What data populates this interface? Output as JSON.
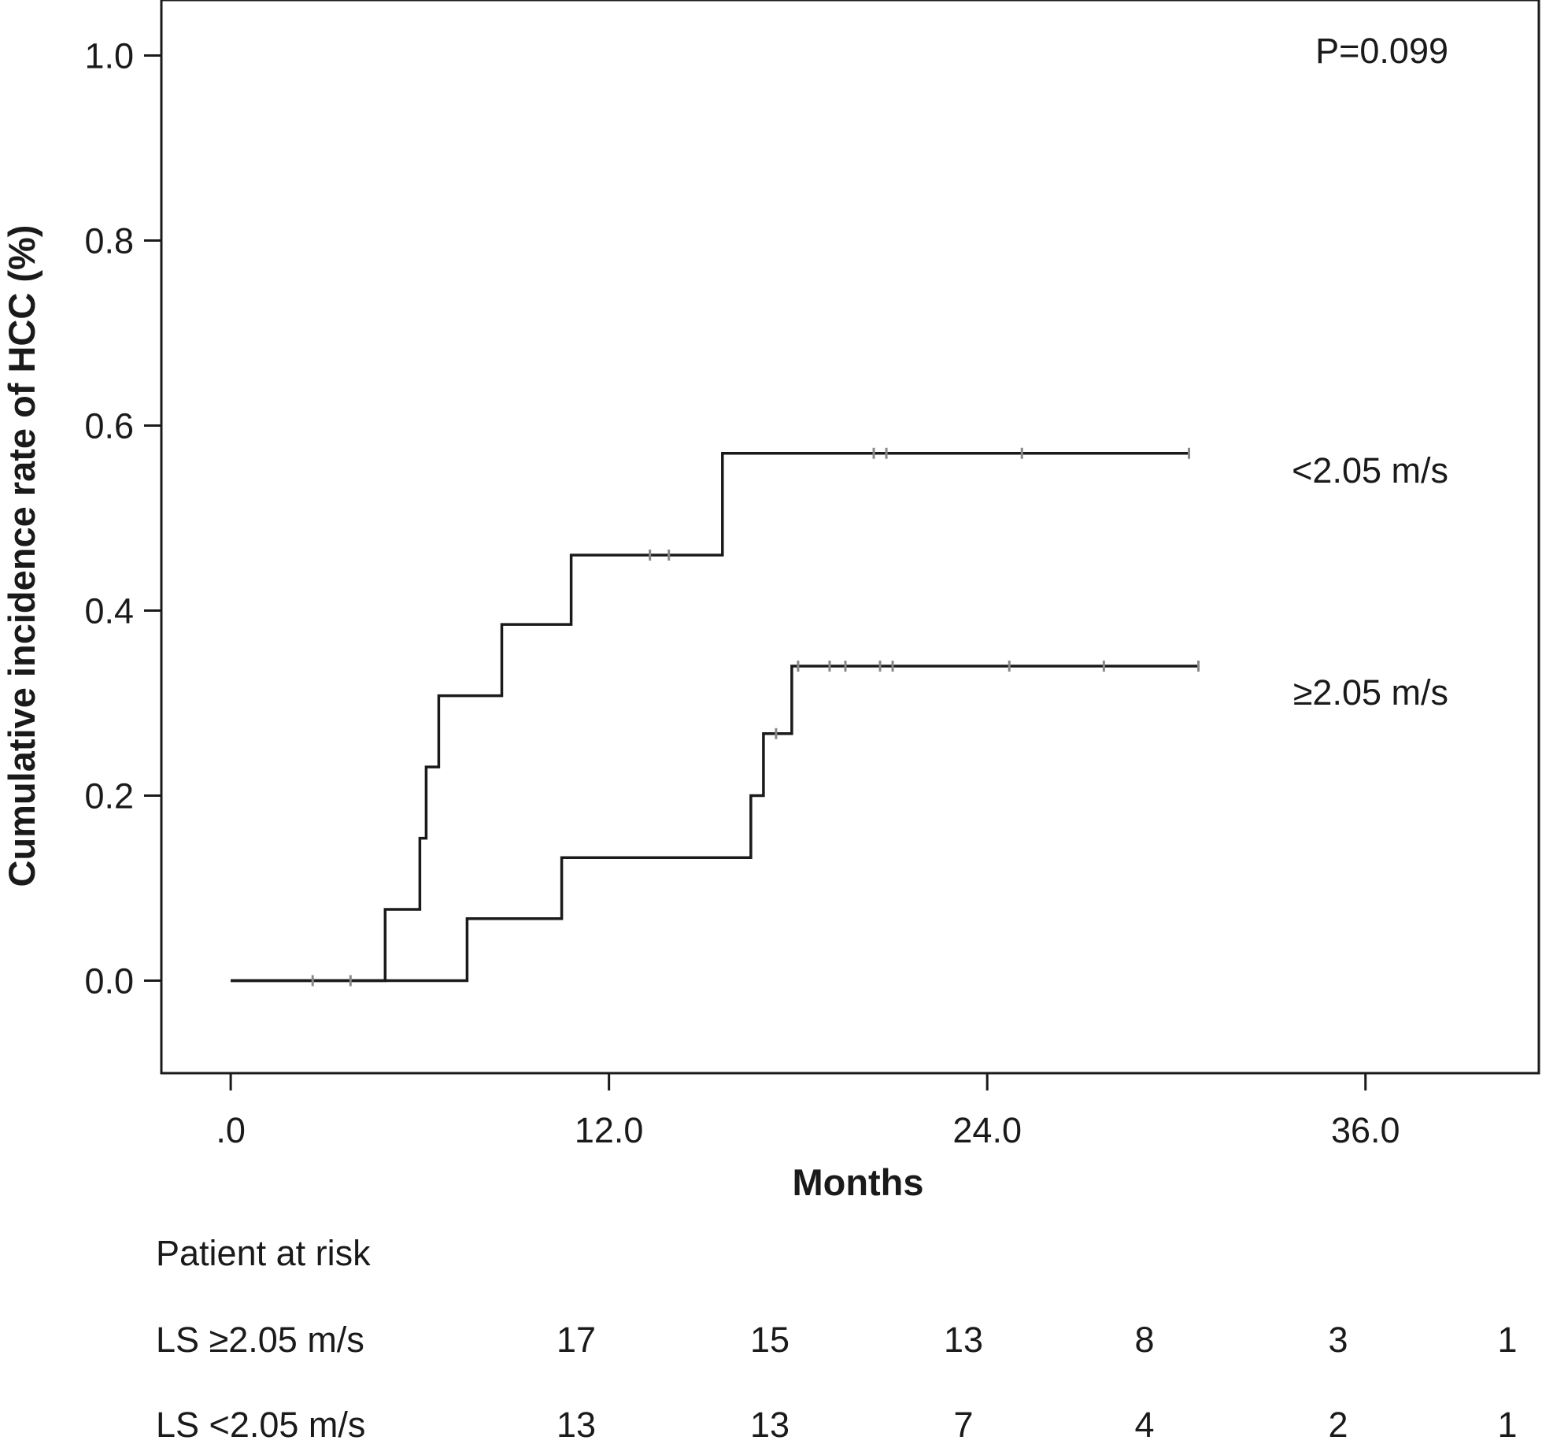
{
  "chart_data": {
    "type": "line",
    "step": true,
    "xlabel": "Months",
    "ylabel": "Cumulative incidence rate of HCC (%)",
    "xlim": [
      -2.2,
      41.5
    ],
    "ylim": [
      -0.1,
      1.06
    ],
    "xticks": [
      0,
      12,
      24,
      36
    ],
    "xtick_labels": [
      ".0",
      "12.0",
      "24.0",
      "36.0"
    ],
    "yticks": [
      0.0,
      0.2,
      0.4,
      0.6,
      0.8,
      1.0
    ],
    "ytick_labels": [
      "0.0",
      "0.2",
      "0.4",
      "0.6",
      "0.8",
      "1.0"
    ],
    "annotation": "P=0.099",
    "series": [
      {
        "name": "<2.05 m/s",
        "x": [
          0,
          4.9,
          6.0,
          6.2,
          6.6,
          6.4,
          13.3,
          13.9,
          9.0,
          10.8,
          11.1,
          15.6,
          28.3,
          28.6,
          20.4,
          20.8,
          25.1,
          30.4
        ],
        "y": [
          0,
          0.077,
          0.154,
          0.154,
          0.308,
          0.231,
          0.46,
          0.46,
          0.385,
          0.385,
          0.46,
          0.57,
          0.57,
          0.57,
          0.57,
          0.57,
          0.57,
          0.57
        ],
        "points": [
          [
            0,
            0
          ],
          [
            4.9,
            0
          ],
          [
            4.9,
            0.077
          ],
          [
            6.0,
            0.077
          ],
          [
            6.0,
            0.154
          ],
          [
            6.2,
            0.154
          ],
          [
            6.2,
            0.231
          ],
          [
            6.6,
            0.231
          ],
          [
            6.6,
            0.308
          ],
          [
            8.6,
            0.308
          ],
          [
            8.6,
            0.385
          ],
          [
            10.8,
            0.385
          ],
          [
            10.8,
            0.46
          ],
          [
            15.6,
            0.46
          ],
          [
            15.6,
            0.57
          ],
          [
            30.4,
            0.57
          ]
        ],
        "censored_x": [
          13.3,
          13.9,
          20.4,
          20.8,
          25.1,
          30.4
        ],
        "censored_y": [
          0.46,
          0.46,
          0.57,
          0.57,
          0.57,
          0.57
        ]
      },
      {
        "name": "≥2.05 m/s",
        "points": [
          [
            0,
            0
          ],
          [
            7.5,
            0
          ],
          [
            7.5,
            0.067
          ],
          [
            10.5,
            0.067
          ],
          [
            10.5,
            0.133
          ],
          [
            16.5,
            0.133
          ],
          [
            16.5,
            0.2
          ],
          [
            16.9,
            0.2
          ],
          [
            16.9,
            0.267
          ],
          [
            17.8,
            0.267
          ],
          [
            17.8,
            0.34
          ],
          [
            30.7,
            0.34
          ]
        ],
        "censored_x": [
          2.6,
          3.8,
          17.3,
          18.0,
          19.0,
          19.5,
          20.6,
          21.0,
          24.7,
          27.7,
          30.7
        ],
        "censored_y": [
          0,
          0,
          0.267,
          0.34,
          0.34,
          0.34,
          0.34,
          0.34,
          0.34,
          0.34,
          0.34
        ]
      }
    ],
    "risk_table": {
      "title": "Patient at risk",
      "rows": [
        {
          "label": "LS ≥2.05 m/s",
          "values": [
            "17",
            "15",
            "13",
            "8",
            "3",
            "1"
          ]
        },
        {
          "label": "LS <2.05 m/s",
          "values": [
            "13",
            "13",
            "7",
            "4",
            "2",
            "1"
          ]
        }
      ]
    }
  }
}
